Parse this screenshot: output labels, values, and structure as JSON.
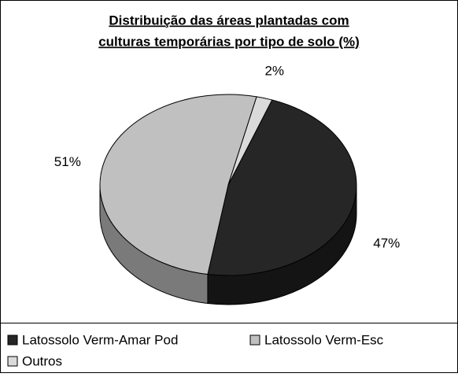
{
  "chart_data": {
    "type": "pie3d",
    "title": [
      "Distribuição das áreas plantadas com",
      "culturas temporárias por tipo de solo (%)"
    ],
    "categories": [
      "Latossolo Verm-Amar Pod",
      "Latossolo Verm-Esc",
      "Outros"
    ],
    "values": [
      47,
      51,
      2
    ],
    "value_labels": [
      "47%",
      "51%",
      "2%"
    ],
    "colors": [
      "#262626",
      "#c0c0c0",
      "#dadada"
    ],
    "side_colors": [
      "#141414",
      "#7a7a7a",
      "#9a9a9a"
    ]
  }
}
